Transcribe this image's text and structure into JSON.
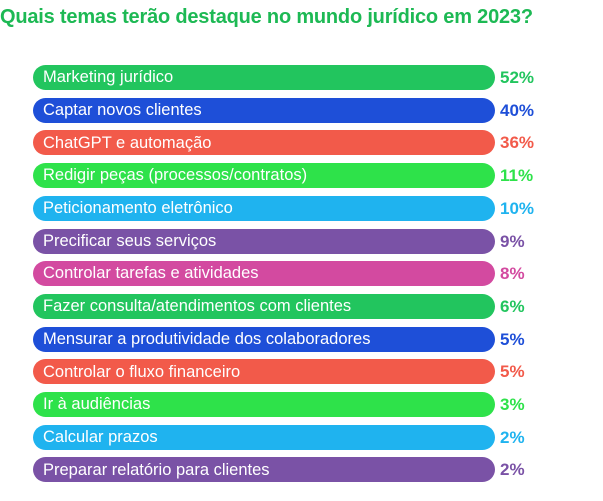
{
  "chart_data": {
    "type": "bar",
    "orientation": "horizontal",
    "title": "Quais temas terão destaque no mundo jurídico em 2023?",
    "unit": "%",
    "categories": [
      "Marketing jurídico",
      "Captar novos clientes",
      "ChatGPT e automação",
      "Redigir peças (processos/contratos)",
      "Peticionamento eletrônico",
      "Precificar seus serviços",
      "Controlar tarefas e atividades",
      "Fazer consulta/atendimentos com clientes",
      "Mensurar a produtividade dos colaboradores",
      "Controlar o fluxo financeiro",
      "Ir à audiências",
      "Calcular prazos",
      "Preparar relatório para clientes"
    ],
    "values": [
      52,
      40,
      36,
      11,
      10,
      9,
      8,
      6,
      5,
      5,
      3,
      2,
      2
    ],
    "value_labels": [
      "52%",
      "40%",
      "36%",
      "11%",
      "10%",
      "9%",
      "8%",
      "6%",
      "5%",
      "5%",
      "3%",
      "2%",
      "2%"
    ],
    "colors": [
      "#22c55e",
      "#1e4fd8",
      "#f25a4a",
      "#2ee24a",
      "#1fb3ef",
      "#7a52a6",
      "#d34aa0",
      "#22c55e",
      "#1e4fd8",
      "#f25a4a",
      "#2ee24a",
      "#1fb3ef",
      "#7a52a6"
    ],
    "title_color": "#1db954"
  }
}
